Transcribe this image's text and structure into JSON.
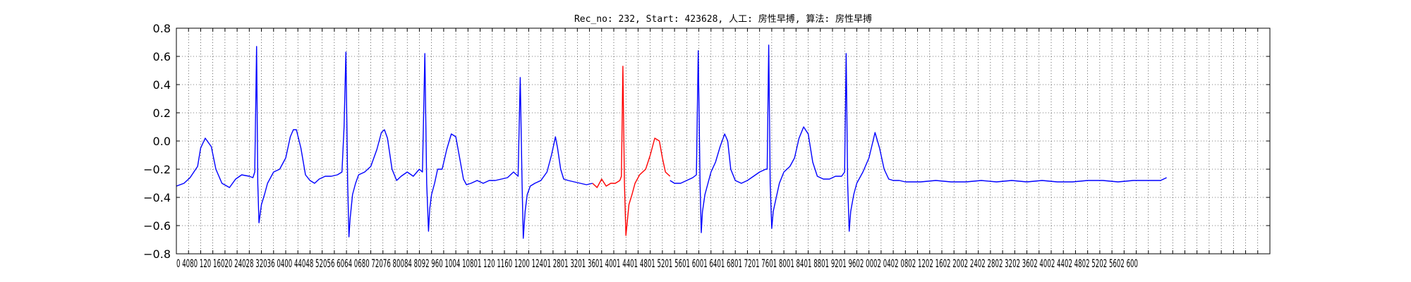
{
  "chart_data": {
    "type": "line",
    "title": "Rec_no: 232, Start: 423628, 人工: 房性早搏, 算法: 房性早搏",
    "xlabel": "",
    "ylabel": "",
    "xlim": [
      0,
      3600
    ],
    "ylim": [
      -0.8,
      0.8
    ],
    "y_ticks": [
      -0.8,
      -0.6,
      -0.4,
      -0.2,
      0.0,
      0.2,
      0.4,
      0.6,
      0.8
    ],
    "y_tick_labels": [
      "−0.8",
      "−0.6",
      "−0.4",
      "−0.2",
      "0.0",
      "0.2",
      "0.4",
      "0.6",
      "0.8"
    ],
    "x_ticks": [
      0,
      40,
      80,
      120,
      160,
      200,
      240,
      280,
      320,
      360,
      400,
      440,
      480,
      520,
      560,
      600,
      640,
      680,
      720,
      760,
      800,
      840,
      880,
      920,
      960,
      1000,
      1040,
      1080,
      1120,
      1160,
      1200,
      1240,
      1280,
      1320,
      1360,
      1400,
      1440,
      1480,
      1520,
      1560,
      1600,
      1640,
      1680,
      1720,
      1760,
      1800,
      1840,
      1880,
      1920,
      1960,
      2000,
      2040,
      2080,
      2120,
      2160,
      2200,
      2240,
      2280,
      2320,
      2360,
      2400,
      2440,
      2480,
      2520,
      2560,
      2600,
      2640,
      2680,
      2720,
      2760,
      2800,
      2840,
      2880,
      2920,
      2960,
      3000,
      3040,
      3080,
      3120,
      3160,
      3200,
      3240,
      3280,
      3320,
      3360,
      3400,
      3440,
      3480,
      3520,
      3560,
      3600
    ],
    "x_tick_labels_visible": "0 4080 120 16020 24028 32036 0400 44048 52056 6064 0680 72076 80084 8092 960 1004 10801 120 1160 1200 12401 2801 3201 3601 4001 4401 4801 5201 5601 6001 6401 6801 7201 7601 8001 8401 8801 9201 9602 0002 0402 0802 1202 1602 2002 2402 2802 3202 3602 4002 4402 4802 5202 5602 600",
    "grid": true,
    "series": [
      {
        "color": "#0000ff",
        "x": [
          0,
          25,
          45,
          70,
          80,
          95,
          115,
          130,
          150,
          175,
          195,
          215,
          240,
          252,
          258,
          264,
          268,
          272,
          280,
          290,
          300,
          320,
          340,
          360,
          375,
          385,
          395,
          410,
          425,
          440,
          455,
          470,
          490,
          510,
          530,
          545,
          552,
          558,
          564,
          568,
          572,
          580,
          590,
          600,
          620,
          640,
          660,
          675,
          685,
          695,
          710,
          725,
          740,
          760,
          780,
          800,
          810,
          818,
          824,
          830,
          834,
          840,
          850,
          860,
          875,
          890,
          905,
          920,
          935,
          945,
          955,
          970,
          990,
          1010,
          1030,
          1050,
          1070,
          1090,
          1110,
          1125,
          1132,
          1138,
          1142,
          1148,
          1155,
          1165,
          1180,
          1200,
          1220,
          1235,
          1248,
          1255,
          1265,
          1275,
          1290,
          1310,
          1330,
          1350,
          1370
        ],
        "y": [
          -0.32,
          -0.3,
          -0.26,
          -0.18,
          -0.05,
          0.02,
          -0.04,
          -0.2,
          -0.3,
          -0.33,
          -0.27,
          -0.24,
          -0.25,
          -0.26,
          -0.22,
          0.67,
          -0.3,
          -0.58,
          -0.45,
          -0.38,
          -0.3,
          -0.22,
          -0.2,
          -0.12,
          0.03,
          0.08,
          0.08,
          -0.05,
          -0.24,
          -0.28,
          -0.3,
          -0.27,
          -0.25,
          -0.25,
          -0.24,
          -0.22,
          0.1,
          0.63,
          -0.3,
          -0.68,
          -0.55,
          -0.38,
          -0.3,
          -0.24,
          -0.22,
          -0.18,
          -0.06,
          0.06,
          0.08,
          0.02,
          -0.2,
          -0.28,
          -0.25,
          -0.22,
          -0.25,
          -0.2,
          -0.22,
          0.62,
          -0.3,
          -0.64,
          -0.48,
          -0.38,
          -0.3,
          -0.2,
          -0.2,
          -0.06,
          0.05,
          0.03,
          -0.15,
          -0.27,
          -0.31,
          -0.3,
          -0.28,
          -0.3,
          -0.28,
          -0.28,
          -0.27,
          -0.26,
          -0.22,
          -0.25,
          0.45,
          -0.3,
          -0.69,
          -0.5,
          -0.38,
          -0.32,
          -0.3,
          -0.28,
          -0.22,
          -0.1,
          0.03,
          -0.05,
          -0.2,
          -0.27,
          -0.28,
          -0.29,
          -0.3,
          -0.31,
          -0.3
        ]
      },
      {
        "color": "#ff0000",
        "x": [
          1370,
          1385,
          1400,
          1415,
          1430,
          1445,
          1460,
          1465,
          1470,
          1475,
          1480,
          1490,
          1500,
          1510,
          1525,
          1545,
          1560,
          1575,
          1590,
          1600,
          1610,
          1625
        ],
        "y": [
          -0.3,
          -0.33,
          -0.27,
          -0.32,
          -0.3,
          -0.3,
          -0.28,
          -0.25,
          0.53,
          -0.3,
          -0.67,
          -0.45,
          -0.38,
          -0.3,
          -0.24,
          -0.2,
          -0.1,
          0.02,
          0.0,
          -0.12,
          -0.22,
          -0.25
        ]
      },
      {
        "color": "#0000ff",
        "x": [
          1625,
          1640,
          1660,
          1680,
          1700,
          1712,
          1718,
          1724,
          1728,
          1732,
          1740,
          1750,
          1760,
          1775,
          1790,
          1805,
          1815,
          1825,
          1840,
          1860,
          1880,
          1900,
          1920,
          1940,
          1945,
          1950,
          1955,
          1960,
          1965,
          1975,
          1985,
          2000,
          2020,
          2035,
          2050,
          2065,
          2080,
          2095,
          2110,
          2130,
          2150,
          2170,
          2190,
          2200,
          2205,
          2210,
          2215,
          2220,
          2230,
          2240,
          2260,
          2280,
          2300,
          2315,
          2330,
          2345,
          2360,
          2380,
          2400,
          2450,
          2500,
          2550,
          2600,
          2650,
          2700,
          2750,
          2800,
          2850,
          2900,
          2950,
          3000,
          3050,
          3100,
          3150,
          3200,
          3240,
          3260
        ],
        "y": [
          -0.28,
          -0.3,
          -0.3,
          -0.28,
          -0.26,
          -0.24,
          0.64,
          -0.3,
          -0.65,
          -0.5,
          -0.38,
          -0.3,
          -0.22,
          -0.15,
          -0.04,
          0.05,
          0.0,
          -0.2,
          -0.28,
          -0.3,
          -0.28,
          -0.25,
          -0.22,
          -0.2,
          -0.2,
          0.68,
          -0.3,
          -0.62,
          -0.5,
          -0.4,
          -0.3,
          -0.22,
          -0.18,
          -0.12,
          0.02,
          0.1,
          0.05,
          -0.15,
          -0.25,
          -0.27,
          -0.27,
          -0.25,
          -0.25,
          -0.22,
          0.62,
          -0.3,
          -0.64,
          -0.5,
          -0.38,
          -0.3,
          -0.22,
          -0.12,
          0.06,
          -0.05,
          -0.2,
          -0.27,
          -0.28,
          -0.28,
          -0.29,
          -0.29,
          -0.28,
          -0.29,
          -0.29,
          -0.28,
          -0.29,
          -0.28,
          -0.29,
          -0.28,
          -0.29,
          -0.29,
          -0.28,
          -0.28,
          -0.29,
          -0.28,
          -0.28,
          -0.28,
          -0.26
        ]
      }
    ]
  }
}
